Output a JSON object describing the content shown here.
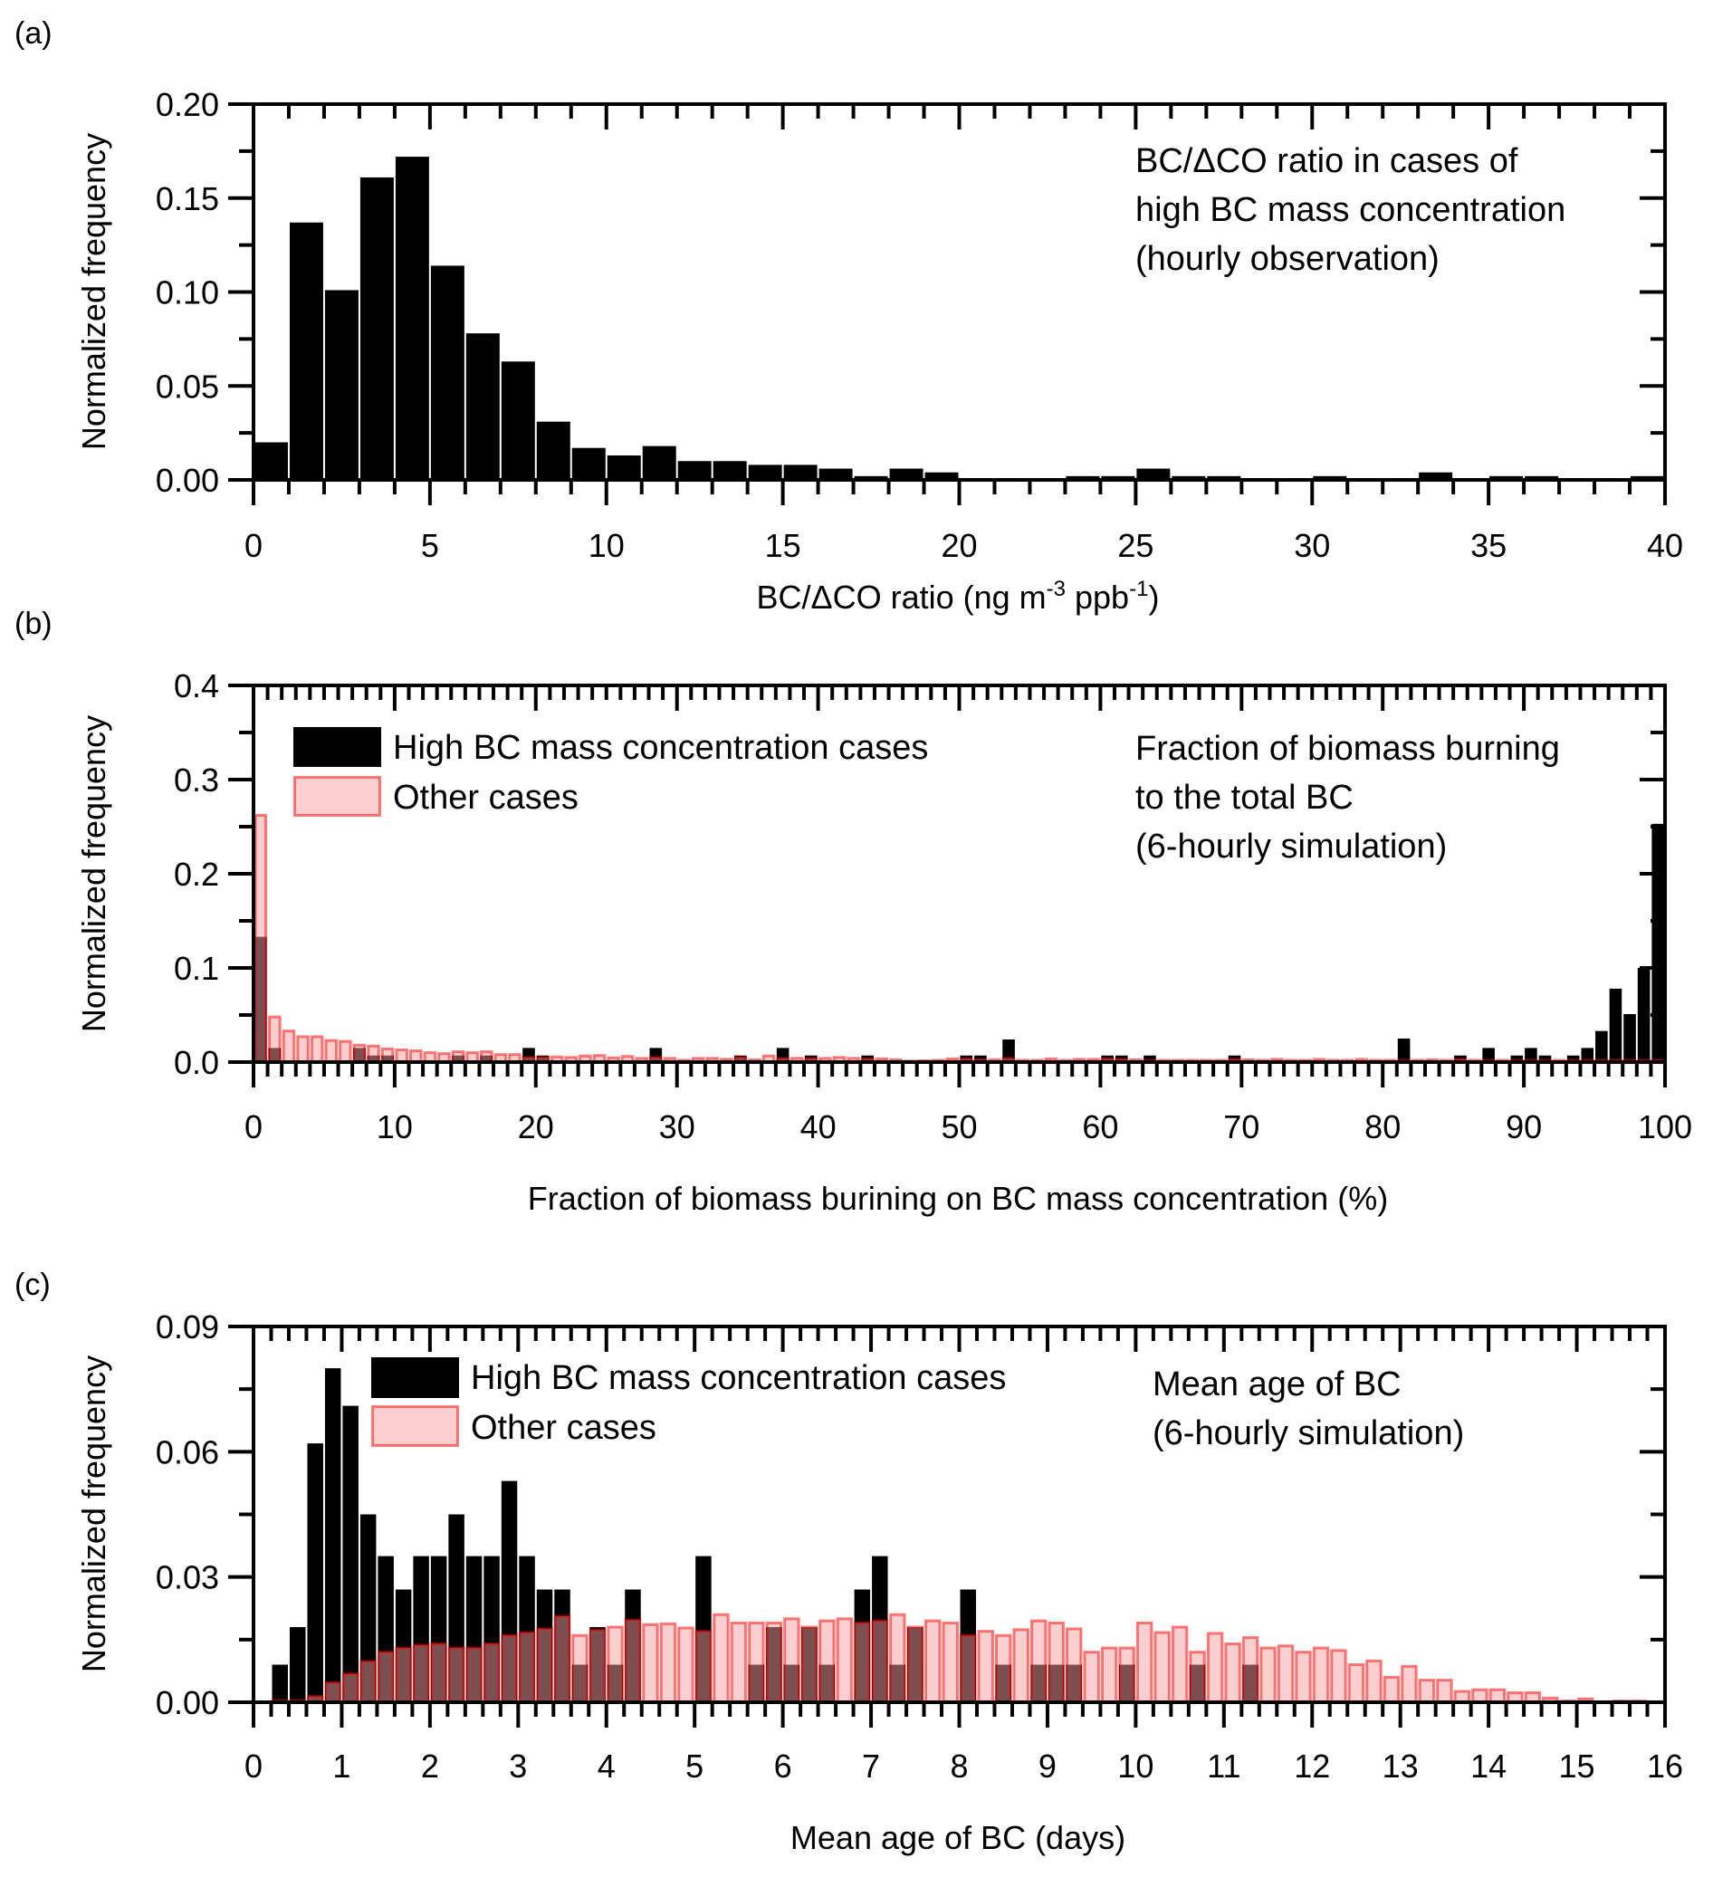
{
  "chart_data": [
    {
      "panel_label": "(a)",
      "type": "bar",
      "xlim": [
        0,
        40
      ],
      "ylim": [
        0,
        0.2
      ],
      "x_ticks": [
        "0",
        "5",
        "10",
        "15",
        "20",
        "25",
        "30",
        "35",
        "40"
      ],
      "y_ticks": [
        "0.00",
        "0.05",
        "0.10",
        "0.15",
        "0.20"
      ],
      "ylabel": "Normalized frequency",
      "xlabel_parts": [
        "BC/ΔCO ratio (ng m",
        "-3",
        " ppb",
        "-1",
        ")"
      ],
      "annotation": [
        "BC/ΔCO ratio in cases of",
        "high BC mass concentration",
        "(hourly observation)"
      ],
      "bin_width": 1,
      "series": [
        {
          "color": "#000000",
          "values": [
            0.02,
            0.137,
            0.101,
            0.161,
            0.172,
            0.114,
            0.078,
            0.063,
            0.031,
            0.017,
            0.013,
            0.018,
            0.01,
            0.01,
            0.008,
            0.008,
            0.006,
            0.002,
            0.006,
            0.004,
            0,
            0,
            0,
            0.002,
            0.002,
            0.006,
            0.002,
            0.002,
            0,
            0,
            0.002,
            0,
            0,
            0.004,
            0,
            0.002,
            0.002,
            0,
            0,
            0.002
          ]
        }
      ]
    },
    {
      "panel_label": "(b)",
      "type": "bar",
      "xlim": [
        0,
        100
      ],
      "ylim": [
        0,
        0.4
      ],
      "x_ticks": [
        "0",
        "10",
        "20",
        "30",
        "40",
        "50",
        "60",
        "70",
        "80",
        "90",
        "100"
      ],
      "y_ticks": [
        "0.0",
        "0.1",
        "0.2",
        "0.3",
        "0.4"
      ],
      "ylabel": "Normalized frequency",
      "xlabel": "Fraction of biomass burining on BC mass concentration (%)",
      "annotation": [
        "Fraction of biomass burning",
        "to the total BC",
        "(6-hourly simulation)"
      ],
      "legend": [
        "High BC mass concentration cases",
        "Other cases"
      ],
      "legend_position": "top-left",
      "bin_width": 1,
      "series": [
        {
          "name": "High BC mass concentration cases",
          "color": "#000000",
          "values": [
            0.133,
            0.015,
            0,
            0,
            0,
            0,
            0,
            0.015,
            0.007,
            0.007,
            0,
            0,
            0,
            0,
            0.007,
            0,
            0.007,
            0,
            0,
            0.015,
            0.007,
            0,
            0,
            0,
            0,
            0,
            0,
            0,
            0.015,
            0,
            0,
            0,
            0,
            0,
            0.007,
            0,
            0,
            0.015,
            0,
            0.007,
            0,
            0,
            0,
            0.007,
            0,
            0,
            0,
            0,
            0,
            0,
            0.007,
            0.007,
            0,
            0.024,
            0,
            0,
            0,
            0,
            0,
            0,
            0.007,
            0.007,
            0,
            0.007,
            0,
            0,
            0,
            0,
            0,
            0.007,
            0,
            0,
            0,
            0,
            0,
            0,
            0,
            0,
            0,
            0,
            0,
            0.025,
            0,
            0,
            0,
            0.007,
            0,
            0.015,
            0,
            0.007,
            0.015,
            0.007,
            0,
            0.007,
            0.015,
            0.033,
            0.078,
            0.051,
            0.1,
            0.253
          ]
        },
        {
          "name": "Other cases",
          "color": "#ff6666",
          "values": [
            0.262,
            0.048,
            0.033,
            0.027,
            0.027,
            0.023,
            0.022,
            0.018,
            0.017,
            0.014,
            0.013,
            0.012,
            0.01,
            0.009,
            0.011,
            0.01,
            0.011,
            0.008,
            0.008,
            0.005,
            0.005,
            0.0055,
            0.005,
            0.0065,
            0.007,
            0.0045,
            0.006,
            0.004,
            0.005,
            0.004,
            0.002,
            0.004,
            0.004,
            0.003,
            0.005,
            0.0025,
            0.0065,
            0.004,
            0.004,
            0.004,
            0.004,
            0.005,
            0.004,
            0.0035,
            0.0035,
            0.0025,
            0.001,
            0.0015,
            0.002,
            0.0035,
            0.0035,
            0.0025,
            0.0025,
            0.004,
            0.002,
            0.002,
            0.0035,
            0.002,
            0.003,
            0.003,
            0.0035,
            0.003,
            0.0025,
            0.002,
            0.002,
            0.002,
            0.002,
            0.002,
            0.002,
            0.003,
            0.0025,
            0.002,
            0.003,
            0.002,
            0.002,
            0.003,
            0.002,
            0.002,
            0.003,
            0.002,
            0.002,
            0.002,
            0.002,
            0.0025,
            0.002,
            0.003,
            0.002,
            0.002,
            0.002,
            0.002,
            0.002,
            0.002,
            0.002,
            0.002,
            0.002,
            0.002,
            0.002,
            0.002,
            0.002,
            0.002
          ]
        }
      ]
    },
    {
      "panel_label": "(c)",
      "type": "bar",
      "xlim": [
        0,
        16
      ],
      "ylim": [
        0,
        0.09
      ],
      "x_ticks": [
        "0",
        "1",
        "2",
        "3",
        "4",
        "5",
        "6",
        "7",
        "8",
        "9",
        "10",
        "11",
        "12",
        "13",
        "14",
        "15",
        "16"
      ],
      "y_ticks": [
        "0.00",
        "0.03",
        "0.06",
        "0.09"
      ],
      "ylabel": "Normalized frequency",
      "xlabel": "Mean age of BC (days)",
      "annotation": [
        "Mean age of BC",
        "(6-hourly simulation)"
      ],
      "legend": [
        "High BC mass concentration cases",
        "Other cases"
      ],
      "legend_position": "top-left",
      "bin_width": 0.2,
      "series": [
        {
          "name": "High BC mass concentration cases",
          "color": "#000000",
          "values": [
            0,
            0.009,
            0.018,
            0.062,
            0.08,
            0.071,
            0.045,
            0.035,
            0.027,
            0.035,
            0.035,
            0.045,
            0.035,
            0.035,
            0.053,
            0.035,
            0.027,
            0.027,
            0.009,
            0.018,
            0.009,
            0.027,
            0,
            0,
            0,
            0.035,
            0,
            0,
            0.009,
            0.018,
            0.009,
            0.018,
            0.009,
            0,
            0.027,
            0.035,
            0.009,
            0.018,
            0,
            0,
            0.027,
            0,
            0.009,
            0,
            0.009,
            0.009,
            0.009,
            0,
            0,
            0.009,
            0,
            0,
            0,
            0.009,
            0,
            0,
            0.009,
            0,
            0,
            0,
            0,
            0,
            0,
            0,
            0,
            0,
            0,
            0,
            0,
            0,
            0,
            0,
            0,
            0,
            0,
            0,
            0,
            0,
            0,
            0
          ]
        },
        {
          "name": "Other cases",
          "color": "#ff6666",
          "values": [
            0,
            0.0004,
            0.0004,
            0.0014,
            0.0047,
            0.0068,
            0.0098,
            0.012,
            0.013,
            0.0137,
            0.014,
            0.013,
            0.013,
            0.014,
            0.016,
            0.0167,
            0.0176,
            0.0206,
            0.016,
            0.0173,
            0.018,
            0.0197,
            0.0186,
            0.0188,
            0.0178,
            0.017,
            0.021,
            0.019,
            0.019,
            0.019,
            0.02,
            0.018,
            0.0195,
            0.02,
            0.019,
            0.0195,
            0.021,
            0.018,
            0.0195,
            0.019,
            0.016,
            0.017,
            0.016,
            0.0174,
            0.0195,
            0.019,
            0.0176,
            0.012,
            0.013,
            0.013,
            0.019,
            0.0167,
            0.018,
            0.012,
            0.0165,
            0.014,
            0.0155,
            0.013,
            0.0135,
            0.012,
            0.013,
            0.0124,
            0.009,
            0.0099,
            0.006,
            0.0086,
            0.0053,
            0.0053,
            0.0026,
            0.003,
            0.003,
            0.0023,
            0.0023,
            0.001,
            0.0003,
            0.0008,
            0.0001,
            0.0003,
            0.0003,
            0
          ]
        }
      ]
    }
  ]
}
